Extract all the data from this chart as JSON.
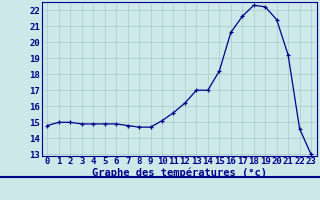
{
  "hours": [
    0,
    1,
    2,
    3,
    4,
    5,
    6,
    7,
    8,
    9,
    10,
    11,
    12,
    13,
    14,
    15,
    16,
    17,
    18,
    19,
    20,
    21,
    22,
    23
  ],
  "temps": [
    14.8,
    15.0,
    15.0,
    14.9,
    14.9,
    14.9,
    14.9,
    14.8,
    14.7,
    14.7,
    15.1,
    15.6,
    16.2,
    17.0,
    17.0,
    18.2,
    20.6,
    21.6,
    22.3,
    22.2,
    21.4,
    19.2,
    14.6,
    13.0
  ],
  "ylim_min": 13,
  "ylim_max": 22.5,
  "yticks": [
    13,
    14,
    15,
    16,
    17,
    18,
    19,
    20,
    21,
    22
  ],
  "bg_color": "#cce8e8",
  "grid_color": "#aacccc",
  "line_color": "#00008b",
  "xlabel": "Graphe des températures (°c)",
  "xlabel_fontsize": 7.5,
  "tick_fontsize": 6.5
}
